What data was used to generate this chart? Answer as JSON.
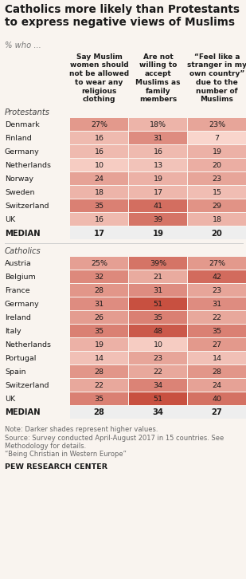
{
  "title": "Catholics more likely than Protestants\nto express negative views of Muslims",
  "subtitle": "% who ...",
  "col_headers": [
    "Say Muslim\nwomen should\nnot be allowed\nto wear any\nreligious\nclothing",
    "Are not\nwilling to\naccept\nMuslims as\nfamily\nmembers",
    "“Feel like a\nstranger in my\nown country”\ndue to the\nnumber of\nMuslims"
  ],
  "protestants_label": "Protestants",
  "catholics_label": "Catholics",
  "protestant_countries": [
    "Denmark",
    "Finland",
    "Germany",
    "Netherlands",
    "Norway",
    "Sweden",
    "Switzerland",
    "UK"
  ],
  "protestant_values": [
    [
      27,
      18,
      23
    ],
    [
      16,
      31,
      7
    ],
    [
      16,
      16,
      19
    ],
    [
      10,
      13,
      20
    ],
    [
      24,
      19,
      23
    ],
    [
      18,
      17,
      15
    ],
    [
      35,
      41,
      29
    ],
    [
      16,
      39,
      18
    ]
  ],
  "protestant_median": [
    17,
    19,
    20
  ],
  "catholic_countries": [
    "Austria",
    "Belgium",
    "France",
    "Germany",
    "Ireland",
    "Italy",
    "Netherlands",
    "Portugal",
    "Spain",
    "Switzerland",
    "UK"
  ],
  "catholic_values": [
    [
      25,
      39,
      27
    ],
    [
      32,
      21,
      42
    ],
    [
      28,
      31,
      23
    ],
    [
      31,
      51,
      31
    ],
    [
      26,
      35,
      22
    ],
    [
      35,
      48,
      35
    ],
    [
      19,
      10,
      27
    ],
    [
      14,
      23,
      14
    ],
    [
      28,
      22,
      28
    ],
    [
      22,
      34,
      24
    ],
    [
      35,
      51,
      40
    ]
  ],
  "catholic_median": [
    28,
    34,
    27
  ],
  "note": "Note: Darker shades represent higher values.\nSource: Survey conducted April-August 2017 in 15 countries. See\nMethodology for details.\n“Being Christian in Western Europe”",
  "footer": "PEW RESEARCH CENTER",
  "bg_color": "#f9f4ef",
  "vmin": 7,
  "vmax": 51
}
